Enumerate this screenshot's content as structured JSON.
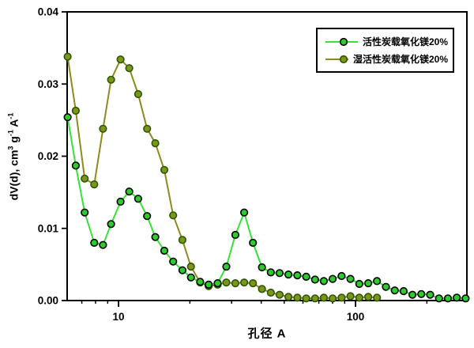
{
  "chart_data": {
    "type": "line",
    "title": "",
    "xlabel": "孔径  A",
    "ylabel": {
      "p1": "dV(d), cm",
      "s1": "3",
      "p2": " g",
      "s2": "-1",
      "p3": " A",
      "s3": "-1"
    },
    "x_scale": "log",
    "xlim": [
      6.07,
      295
    ],
    "ylim": [
      0,
      0.04
    ],
    "grid": false,
    "legend_position": "top-right",
    "y_ticks": [
      0,
      0.01,
      0.02,
      0.03,
      0.04
    ],
    "y_tick_labels": [
      "0.00",
      "0.01",
      "0.02",
      "0.03",
      "0.04"
    ],
    "x_major_ticks": [
      {
        "value": 10,
        "label": "10"
      },
      {
        "value": 100,
        "label": "100"
      }
    ],
    "x_minor_ticks": [
      7,
      8,
      9,
      20,
      30,
      40,
      50,
      60,
      70,
      80,
      90,
      200
    ],
    "series": [
      {
        "name": "活性炭载氧化镁20%",
        "line_color": "#35e535",
        "marker_fill": "#2dcb2d",
        "marker_edge": "#000000",
        "x": [
          6.1,
          6.6,
          7.2,
          7.9,
          8.6,
          9.3,
          10.2,
          11.1,
          12.1,
          13.2,
          14.3,
          15.6,
          17.0,
          18.6,
          20.2,
          22.1,
          24.0,
          26.2,
          28.5,
          31.1,
          33.9,
          36.9,
          40.3,
          43.9,
          47.8,
          52.1,
          56.8,
          61.9,
          67.5,
          73.5,
          80.1,
          87.3,
          95.2,
          103.7,
          113.1,
          123.2,
          134.3,
          146.4,
          159.5,
          173.8,
          189.5,
          206.5,
          225.0,
          245.3,
          267.3,
          291.3
        ],
        "y": [
          0.0254,
          0.0187,
          0.0122,
          0.008,
          0.0077,
          0.0106,
          0.0137,
          0.0151,
          0.0141,
          0.0117,
          0.0088,
          0.0069,
          0.0054,
          0.0042,
          0.0032,
          0.0026,
          0.0022,
          0.0024,
          0.0047,
          0.0091,
          0.0122,
          0.008,
          0.0046,
          0.0039,
          0.0038,
          0.0036,
          0.0035,
          0.0033,
          0.0029,
          0.0027,
          0.003,
          0.0034,
          0.003,
          0.0023,
          0.0024,
          0.0027,
          0.0019,
          0.0014,
          0.0013,
          0.0008,
          0.0009,
          0.0008,
          0.0003,
          0.0003,
          0.0004,
          0.0003
        ]
      },
      {
        "name": "湿活性炭载氧化镁20%",
        "line_color": "#8f8a1b",
        "marker_fill": "#7e941c",
        "marker_edge": "#2a5800",
        "x": [
          6.1,
          6.6,
          7.2,
          7.9,
          8.6,
          9.3,
          10.2,
          11.1,
          12.1,
          13.2,
          14.3,
          15.6,
          17.0,
          18.6,
          20.2,
          22.1,
          24.0,
          26.2,
          28.5,
          31.1,
          33.9,
          36.9,
          40.3,
          43.9,
          47.8,
          52.1,
          56.8,
          61.9,
          67.5,
          73.5,
          80.1,
          87.3,
          95.2,
          103.7,
          113.1,
          123.2
        ],
        "y": [
          0.0338,
          0.0263,
          0.0169,
          0.0161,
          0.0238,
          0.0306,
          0.0334,
          0.0322,
          0.0286,
          0.0238,
          0.0218,
          0.0181,
          0.0118,
          0.0084,
          0.0047,
          0.0025,
          0.002,
          0.0022,
          0.0025,
          0.0024,
          0.0025,
          0.0024,
          0.0016,
          0.0011,
          0.0008,
          0.0005,
          0.0004,
          0.0003,
          0.0003,
          0.0004,
          0.0003,
          0.0004,
          0.0006,
          0.0004,
          0.0005,
          0.0004
        ]
      }
    ]
  }
}
